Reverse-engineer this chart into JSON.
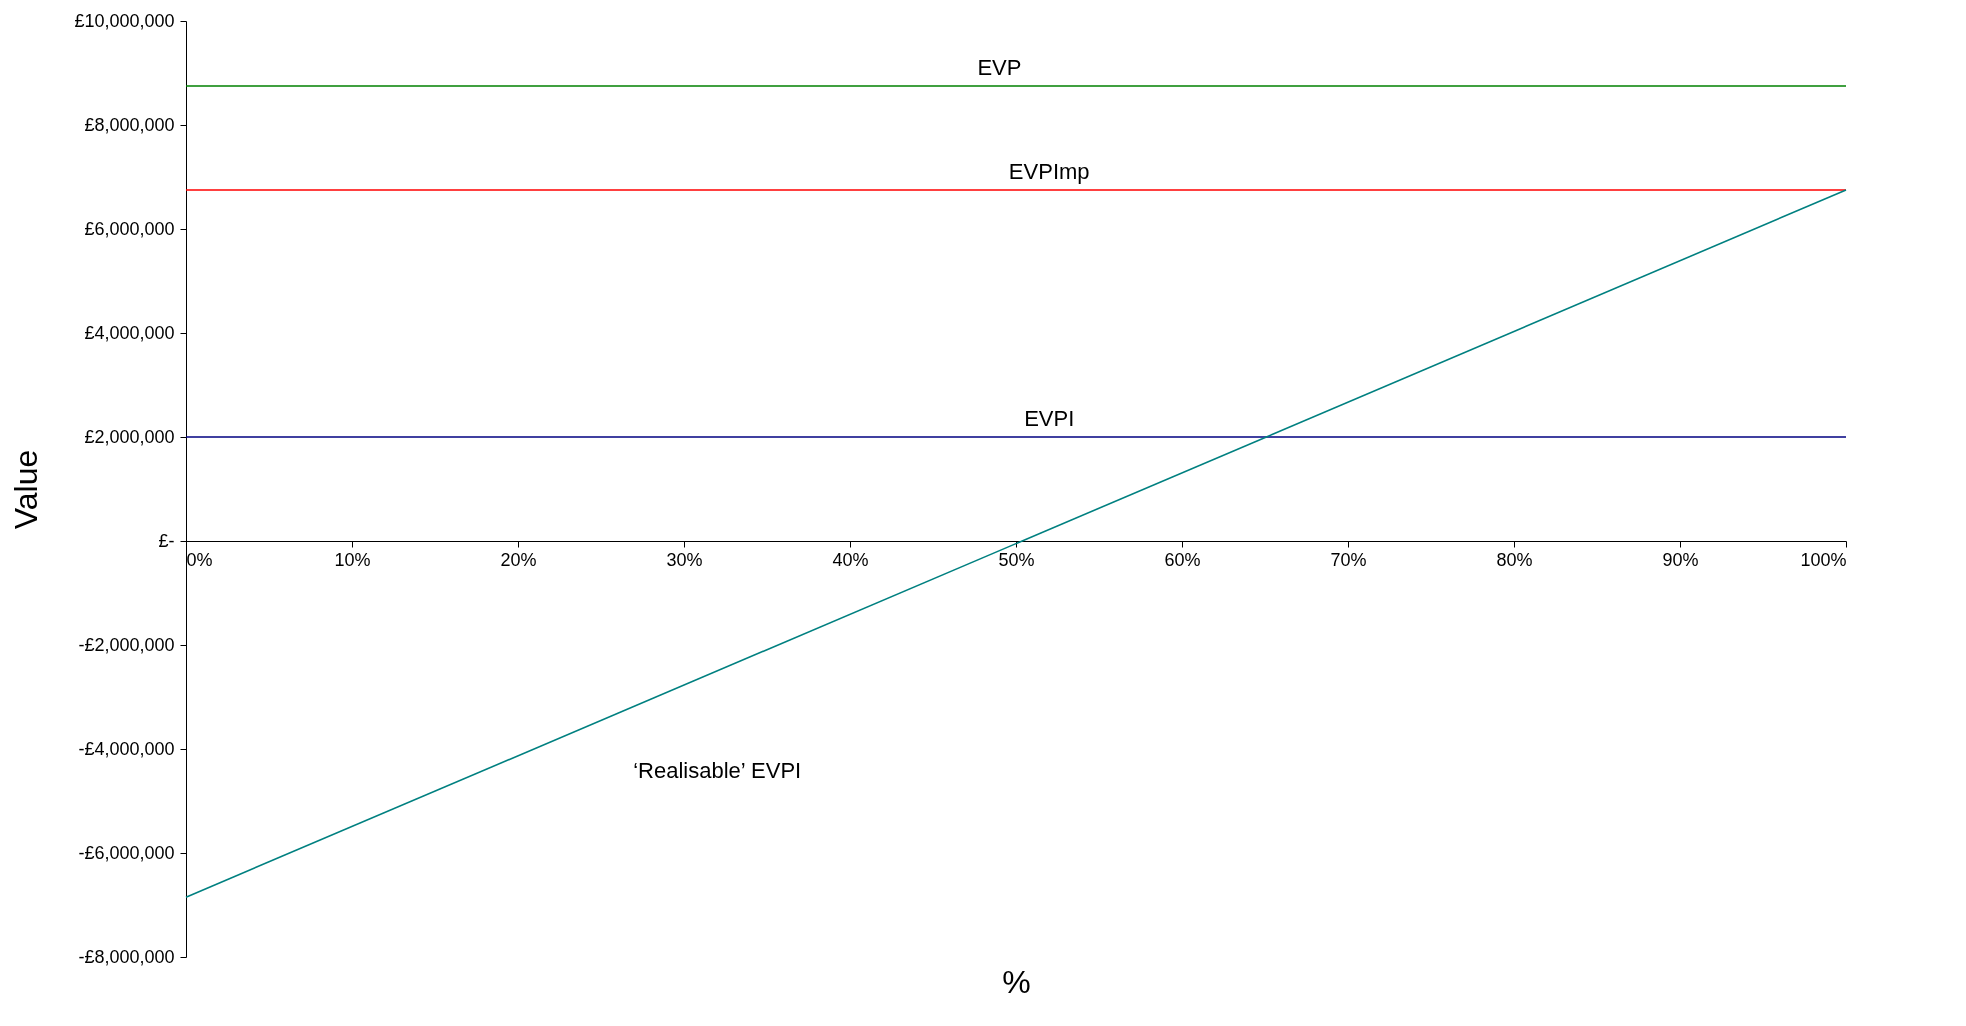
{
  "chart_data": {
    "type": "line",
    "xlabel": "%",
    "ylabel": "Value",
    "xlim": [
      0,
      100
    ],
    "ylim": [
      -8000000,
      10000000
    ],
    "xticks": [
      {
        "value": 0,
        "label": "0%"
      },
      {
        "value": 10,
        "label": "10%"
      },
      {
        "value": 20,
        "label": "20%"
      },
      {
        "value": 30,
        "label": "30%"
      },
      {
        "value": 40,
        "label": "40%"
      },
      {
        "value": 50,
        "label": "50%"
      },
      {
        "value": 60,
        "label": "60%"
      },
      {
        "value": 70,
        "label": "70%"
      },
      {
        "value": 80,
        "label": "80%"
      },
      {
        "value": 90,
        "label": "90%"
      },
      {
        "value": 100,
        "label": "100%"
      }
    ],
    "yticks": [
      {
        "value": -8000000,
        "label": "-£8,000,000"
      },
      {
        "value": -6000000,
        "label": "-£6,000,000"
      },
      {
        "value": -4000000,
        "label": "-£4,000,000"
      },
      {
        "value": -2000000,
        "label": "-£2,000,000"
      },
      {
        "value": 0,
        "label": "£-"
      },
      {
        "value": 2000000,
        "label": "£2,000,000"
      },
      {
        "value": 4000000,
        "label": "£4,000,000"
      },
      {
        "value": 6000000,
        "label": "£6,000,000"
      },
      {
        "value": 8000000,
        "label": "£8,000,000"
      },
      {
        "value": 10000000,
        "label": "£10,000,000"
      }
    ],
    "grid": false,
    "legend": false,
    "marker": "none",
    "line_style": "solid",
    "x": [
      0,
      100
    ],
    "series": [
      {
        "name": "EVP",
        "color": "#008000",
        "values": [
          8750000,
          8750000
        ]
      },
      {
        "name": "EVPImp",
        "color": "#ff0000",
        "values": [
          6750000,
          6750000
        ]
      },
      {
        "name": "EVPI",
        "color": "#000080",
        "values": [
          2000000,
          2000000
        ]
      },
      {
        "name": "‘Realisable’ EVPI",
        "color": "#008080",
        "values": [
          -6850000,
          6750000
        ]
      }
    ]
  }
}
